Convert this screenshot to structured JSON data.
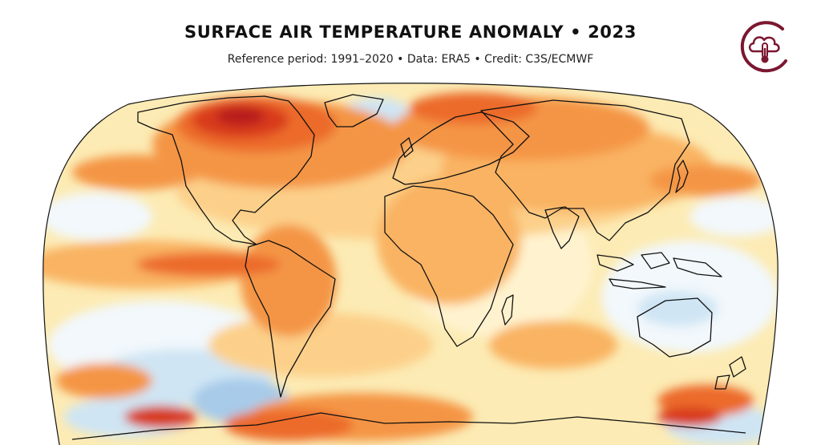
{
  "header": {
    "title": "SURFACE AIR TEMPERATURE ANOMALY • 2023",
    "subtitle": "Reference period: 1991–2020 • Data: ERA5 • Credit: C3S/ECMWF"
  },
  "logo": {
    "icon": "cloud-thermometer-icon",
    "color": "#7b1730"
  },
  "map": {
    "projection": "robinson",
    "colors": {
      "ocean_base": "#fcebb4",
      "pale": "#fff3cf",
      "yellow": "#fcd08a",
      "light_orange": "#f9b362",
      "orange": "#f49545",
      "dark_orange": "#ec6a2a",
      "red": "#d83b1e",
      "dark_red": "#b91d1c",
      "near_white": "#f2f8fc",
      "light_blue": "#cfe5f4",
      "blue": "#a7cbe9",
      "coast": "#111111"
    }
  }
}
